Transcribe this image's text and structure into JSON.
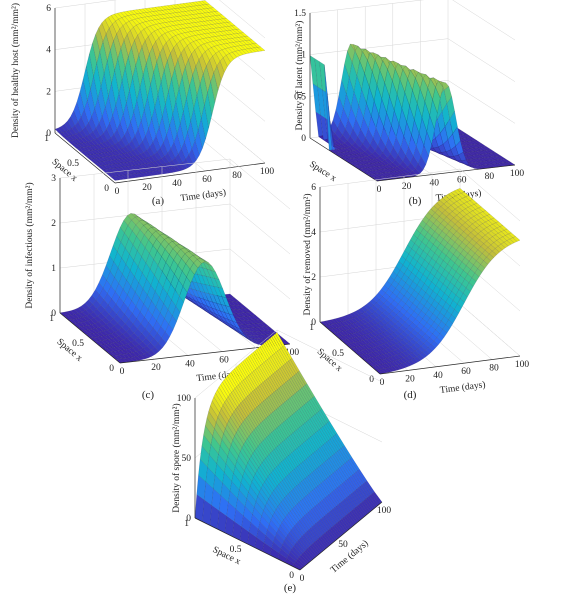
{
  "chart_data": [
    {
      "id": "a",
      "type": "surface",
      "caption": "(a)",
      "zlabel": "Density of healthy host (mm²/mm²)",
      "xlabel": "Time (days)",
      "ylabel": "Space x",
      "x_ticks": [
        "0",
        "20",
        "40",
        "60",
        "80",
        "100"
      ],
      "y_ticks": [
        "0",
        "0.5",
        "1"
      ],
      "z_ticks": [
        "0",
        "2",
        "4",
        "6"
      ],
      "xlim": [
        0,
        100
      ],
      "ylim": [
        0,
        1
      ],
      "zlim": [
        0,
        6
      ],
      "surface": "Healthy host density rises from near 0 toward about 5.3 over time; the rise happens earlier toward space x = 1 (around 20 days) and later toward x = 0 (around 60 days)."
    },
    {
      "id": "b",
      "type": "surface",
      "caption": "(b)",
      "zlabel": "Density of latent (mm²/mm²)",
      "xlabel": "Time (days)",
      "ylabel": "Space x",
      "x_ticks": [
        "0",
        "20",
        "40",
        "60",
        "80",
        "100"
      ],
      "y_ticks": [],
      "z_ticks": [
        "0",
        "0.5",
        "1",
        "1.5"
      ],
      "xlim": [
        0,
        100
      ],
      "ylim": [
        0,
        1
      ],
      "zlim": [
        0,
        1.5
      ],
      "surface": "Sharp initial spike of about 1 at day 0 near x = 1, then a travelling wave of about 1.1 around days 20–50 that decays by day 70."
    },
    {
      "id": "c",
      "type": "surface",
      "caption": "(c)",
      "zlabel": "Density of infectious (mm²/mm²)",
      "xlabel": "Time (days)",
      "ylabel": "Space x",
      "x_ticks": [
        "0",
        "20",
        "40",
        "60",
        "80",
        "100"
      ],
      "y_ticks": [
        "0",
        "0.5",
        "1"
      ],
      "z_ticks": [
        "0",
        "1",
        "2",
        "3"
      ],
      "xlim": [
        0,
        100
      ],
      "ylim": [
        0,
        1
      ],
      "zlim": [
        0,
        3
      ],
      "surface": "Infectious density peaks at about 2 around days 40–55 and decays toward 0 by day 100."
    },
    {
      "id": "d",
      "type": "surface",
      "caption": "(d)",
      "zlabel": "Density of removed (mm²/mm²)",
      "xlabel": "Time (days)",
      "ylabel": "Space x",
      "x_ticks": [
        "0",
        "20",
        "40",
        "60",
        "80",
        "100"
      ],
      "y_ticks": [
        "0",
        "0.5",
        "1"
      ],
      "z_ticks": [
        "0",
        "2",
        "4",
        "6"
      ],
      "xlim": [
        0,
        100
      ],
      "ylim": [
        0,
        1
      ],
      "zlim": [
        0,
        6
      ],
      "surface": "Removed density stays near 0 until about day 30, then rises sigmoidally to about 5.3 by day 100."
    },
    {
      "id": "e",
      "type": "surface",
      "caption": "(e)",
      "zlabel": "Density of spore (mm²/mm²)",
      "xlabel": "Time (days)",
      "ylabel": "Space x",
      "x_ticks": [
        "0",
        "50",
        "100"
      ],
      "y_ticks": [
        "0",
        "0.5",
        "1"
      ],
      "z_ticks": [
        "0",
        "50",
        "100"
      ],
      "xlim": [
        0,
        100
      ],
      "ylim": [
        0,
        1
      ],
      "zlim": [
        0,
        100
      ],
      "surface": "Spore density is near 0 at x = 0 and increases toward x = 1, reaching about 100 at later times."
    }
  ]
}
